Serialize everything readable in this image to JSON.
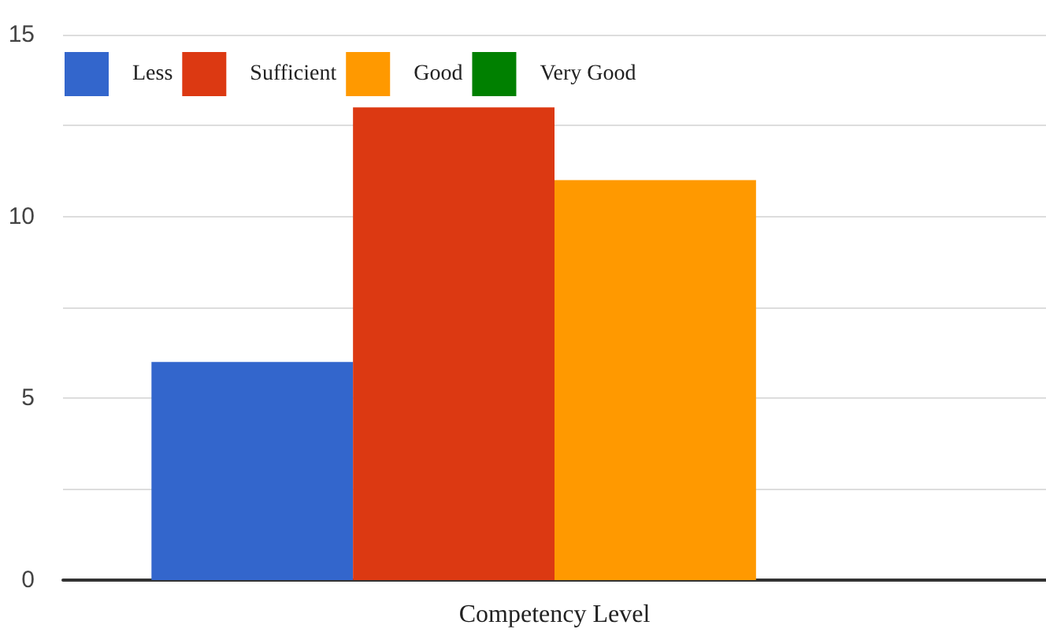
{
  "chart_data": {
    "type": "bar",
    "categories": [
      "Competency Level"
    ],
    "series": [
      {
        "name": "Less",
        "color": "#3366cc",
        "values": [
          6
        ]
      },
      {
        "name": "Sufficient",
        "color": "#dc3912",
        "values": [
          13
        ]
      },
      {
        "name": "Good",
        "color": "#ff9900",
        "values": [
          11
        ]
      },
      {
        "name": "Very Good",
        "color": "#008000",
        "values": [
          0
        ]
      }
    ],
    "ylim": [
      0,
      15
    ],
    "yticks": [
      0,
      {
        "value": 2.5,
        "label": null
      },
      5,
      {
        "value": 7.5,
        "label": null
      },
      10,
      {
        "value": 12.5,
        "label": null
      },
      15
    ],
    "grid": "y",
    "legend": "top left"
  }
}
